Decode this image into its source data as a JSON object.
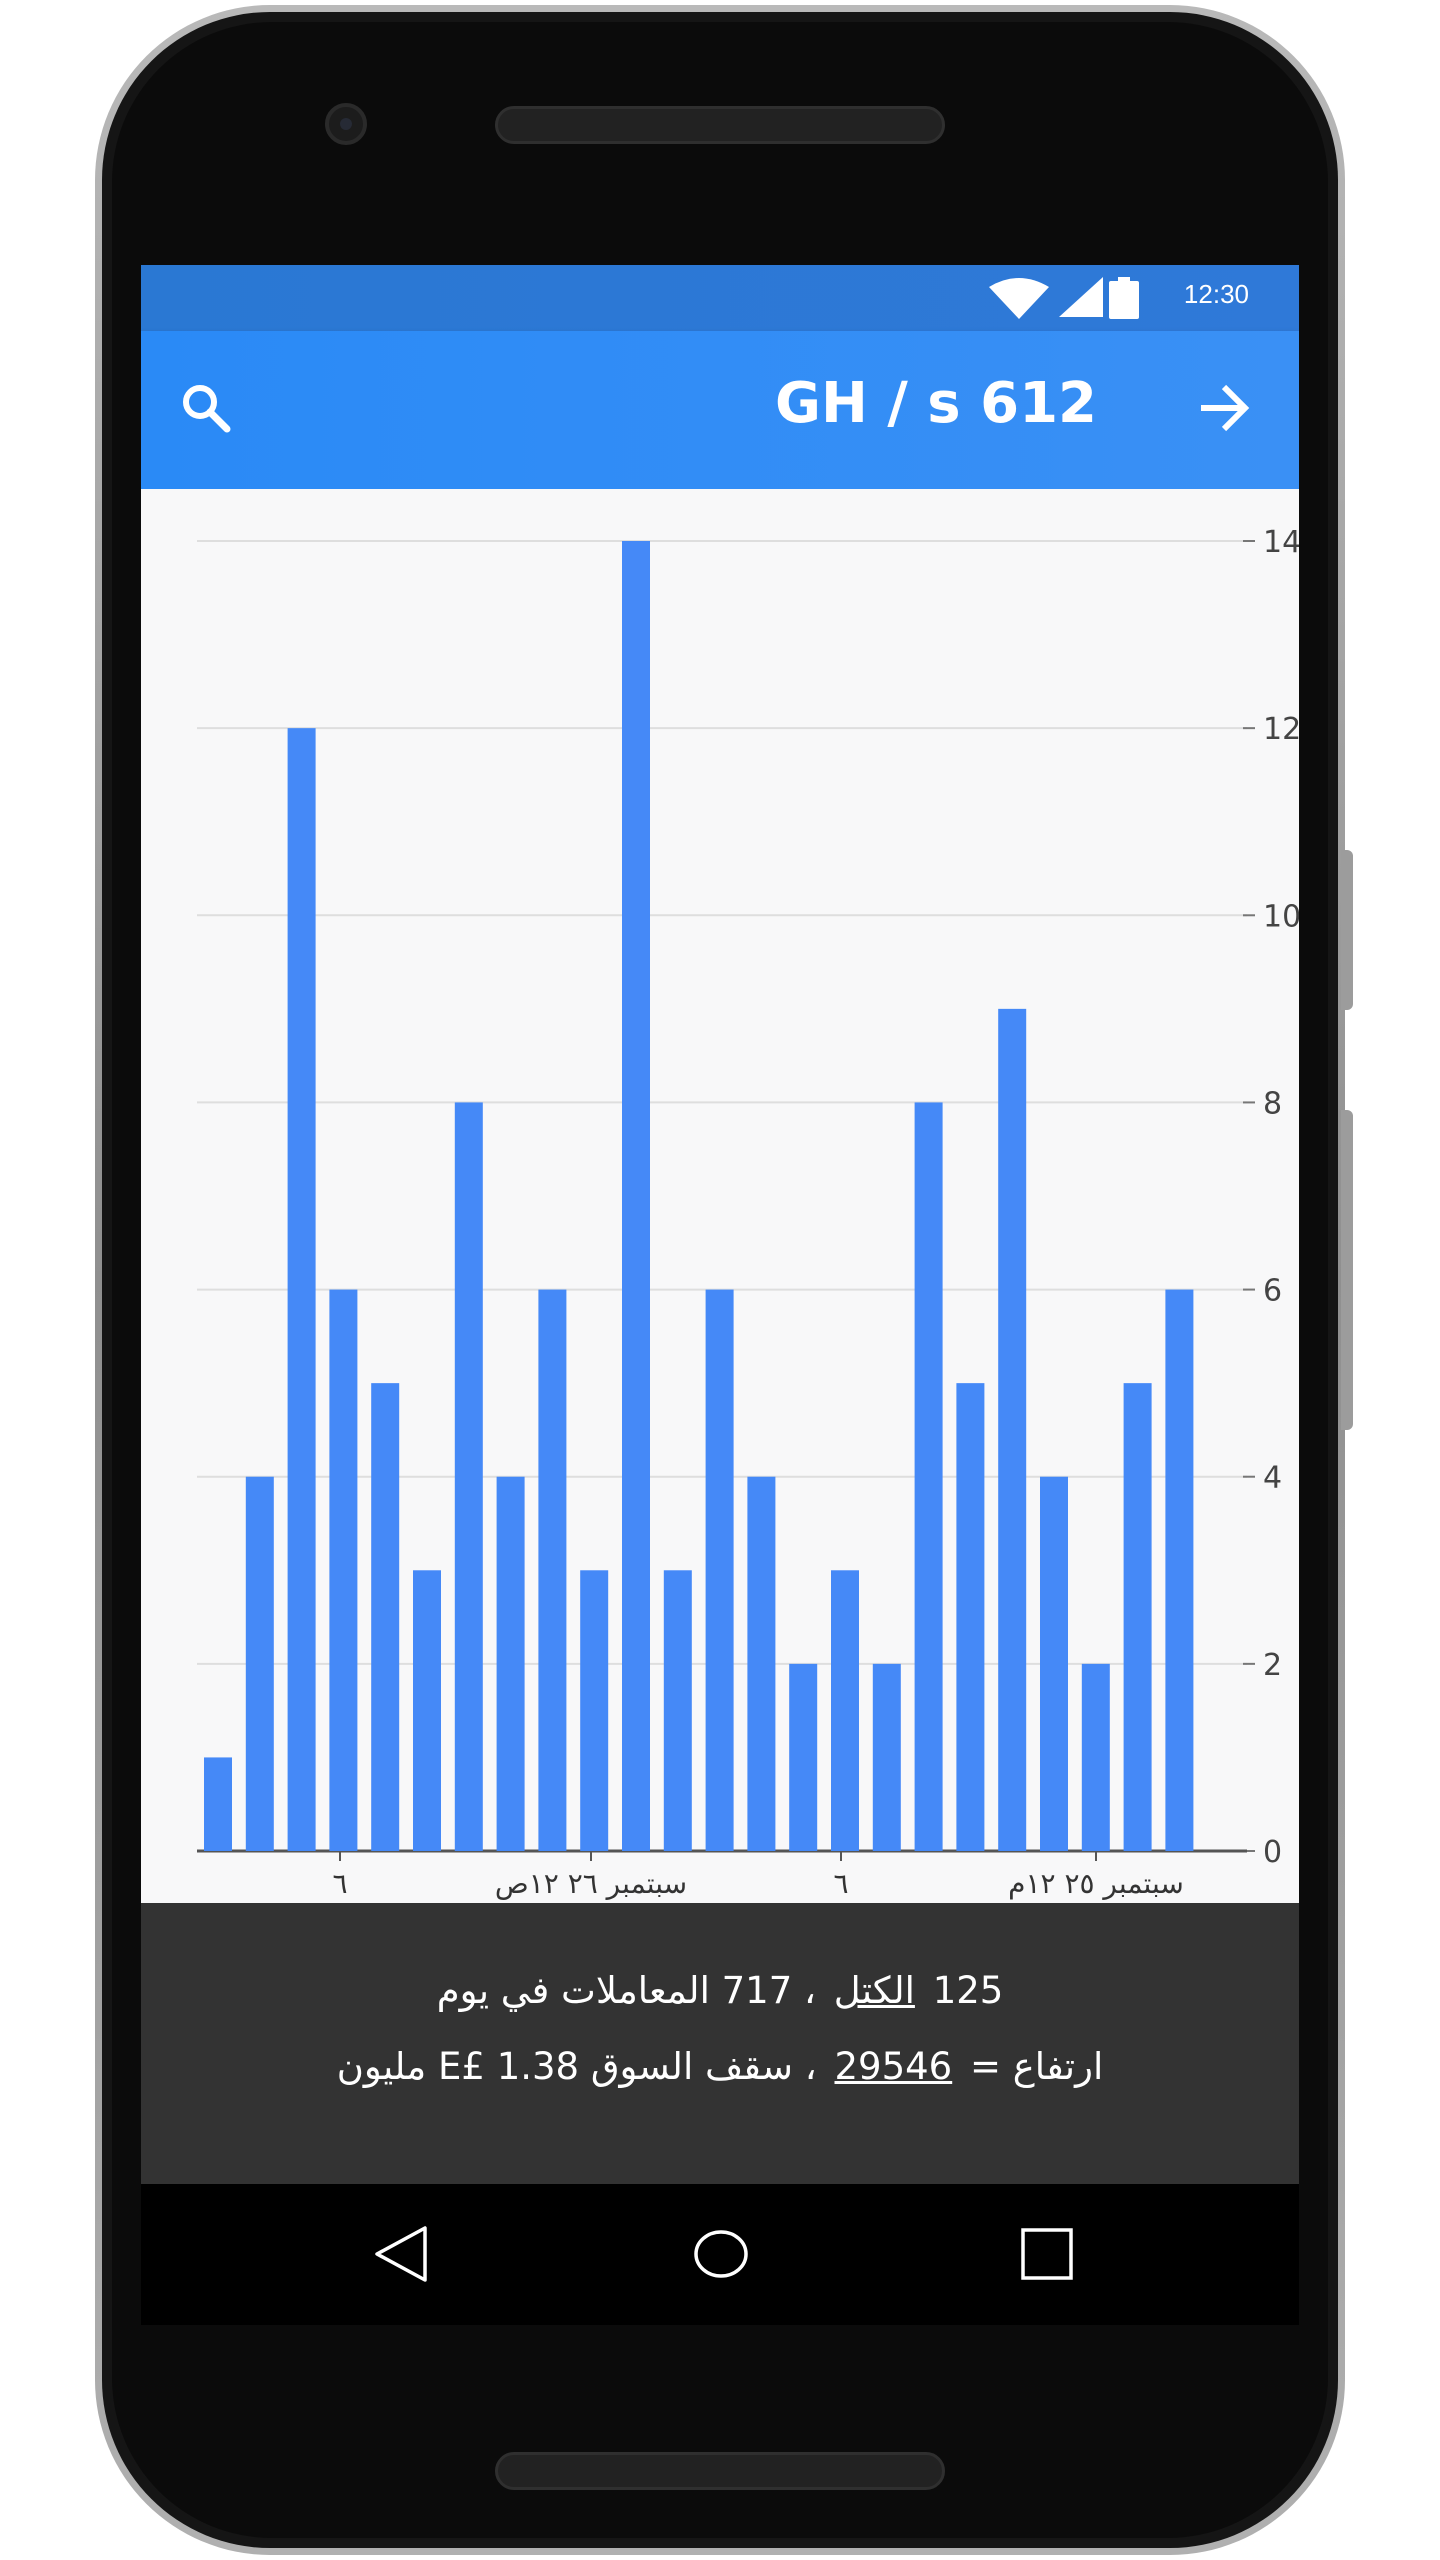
{
  "status_bar": {
    "time": "12:30",
    "icons": [
      "wifi-icon",
      "cell-signal-icon",
      "battery-icon"
    ]
  },
  "app_bar": {
    "title": "GH / s 612",
    "left_icon": "search-icon",
    "right_icon": "arrow-forward-icon"
  },
  "colors": {
    "status_bar": "#2f79d8",
    "app_bar": "#3a90f5",
    "bar": "#4589f7",
    "info_panel": "#333333",
    "chart_background": "#f8f8f9"
  },
  "chart_data": {
    "type": "bar",
    "values": [
      1,
      4,
      12,
      6,
      5,
      3,
      8,
      4,
      6,
      3,
      14,
      3,
      6,
      4,
      2,
      3,
      2,
      8,
      5,
      9,
      4,
      2,
      5,
      6
    ],
    "ylim": [
      0,
      14
    ],
    "y_ticks": [
      "0",
      "2",
      "4",
      "6",
      "8",
      "10",
      "12",
      "14"
    ],
    "x_tick_labels": [
      "٦",
      "سبتمبر ٢٦ ١٢ص",
      "٦",
      "سبتمبر ٢٥ ١٢م"
    ],
    "y_axis_position": "right",
    "grid": true,
    "legend": "none"
  },
  "info": {
    "line1": {
      "blocks_count": "125",
      "blocks_label": "الكتل",
      "separator": "،",
      "transactions_text": "717 المعاملات في يوم"
    },
    "line2": {
      "height_label": "ارتفاع =",
      "height_value": "29546",
      "separator": "،",
      "market_cap_label": "سقف السوق",
      "market_cap_value": "E£ 1.38 مليون"
    }
  },
  "nav_bar": {
    "buttons": [
      "back-triangle-icon",
      "home-circle-icon",
      "recents-square-icon"
    ]
  }
}
